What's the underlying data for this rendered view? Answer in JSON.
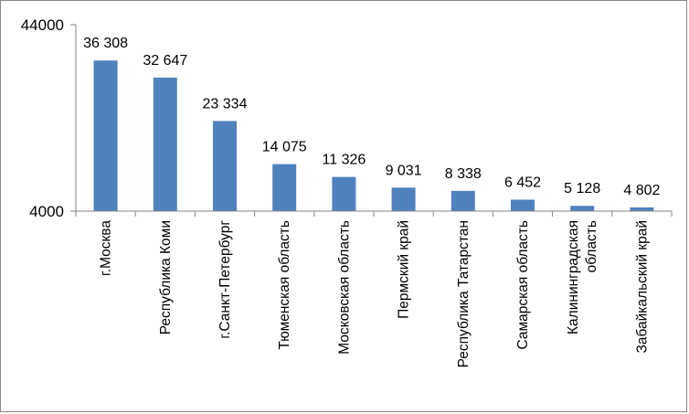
{
  "chart_data": {
    "type": "bar",
    "categories": [
      "г.Москва",
      "Республика Коми",
      "г.Санкт-Петербург",
      "Тюменская область",
      "Московская область",
      "Пермский край",
      "Республика Татарстан",
      "Самарская область",
      "Калининградская область",
      "Забайкальский край"
    ],
    "category_lines": [
      [
        "г.Москва"
      ],
      [
        "Республика Коми"
      ],
      [
        "г.Санкт-Петербург"
      ],
      [
        "Тюменская область"
      ],
      [
        "Московская область"
      ],
      [
        "Пермский край"
      ],
      [
        "Республика Татарстан"
      ],
      [
        "Самарская область"
      ],
      [
        "Калининградская",
        "область"
      ],
      [
        "Забайкальский край"
      ]
    ],
    "values": [
      36308,
      32647,
      23334,
      14075,
      11326,
      9031,
      8338,
      6452,
      5128,
      4802
    ],
    "data_labels": [
      "36 308",
      "32 647",
      "23 334",
      "14 075",
      "11 326",
      "9 031",
      "8 338",
      "6 452",
      "5 128",
      "4 802"
    ],
    "yticks": [
      "4000",
      "44000"
    ],
    "ylim": [
      4000,
      44000
    ],
    "bar_color": "#4F81BD",
    "legend": "none",
    "grid": false
  }
}
